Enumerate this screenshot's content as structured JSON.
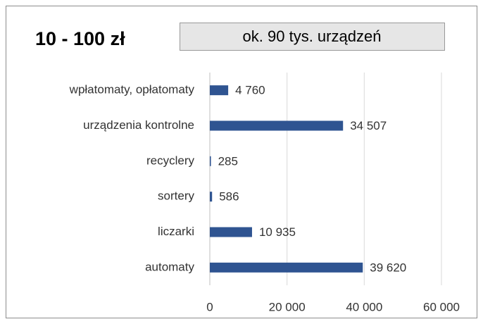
{
  "chart_data": {
    "type": "bar",
    "orientation": "horizontal",
    "title": "10 - 100 zł",
    "subtitle": "ok. 90 tys. urządzeń",
    "categories": [
      "wpłatomaty, opłatomaty",
      "urządzenia kontrolne",
      "recyclery",
      "sortery",
      "liczarki",
      "automaty"
    ],
    "values": [
      4760,
      34507,
      285,
      586,
      10935,
      39620
    ],
    "value_labels": [
      "4 760",
      "34 507",
      "285",
      "586",
      "10 935",
      "39 620"
    ],
    "color": "#2f5491",
    "xlim": [
      0,
      60000
    ],
    "xticks": [
      0,
      {
        "value": 20000,
        "label": "20 000"
      },
      {
        "value": 40000,
        "label": "40 000"
      },
      {
        "value": 60000,
        "label": "60 000"
      }
    ],
    "grid": true
  }
}
